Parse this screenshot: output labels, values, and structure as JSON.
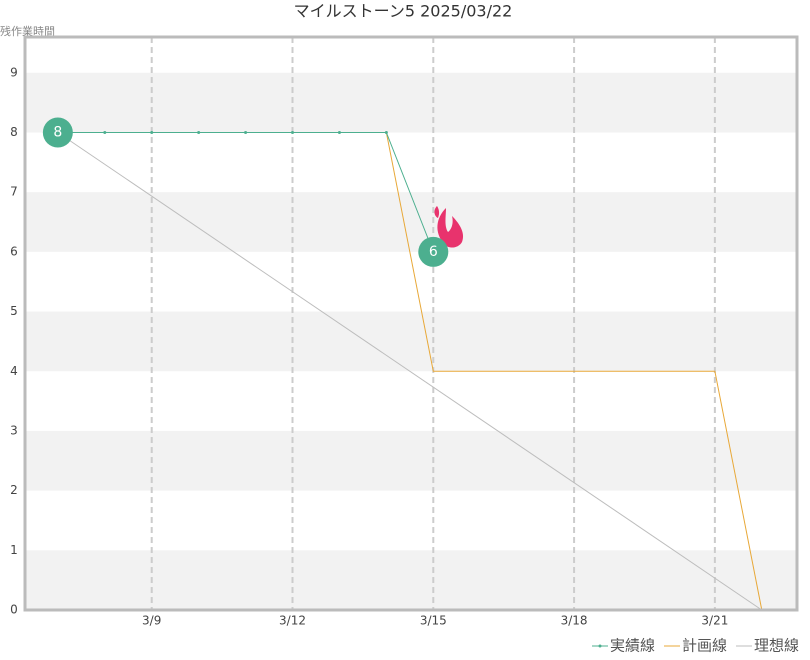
{
  "chart_data": {
    "type": "line",
    "title": "マイルストーン5 2025/03/22",
    "y_label": "残作業時間",
    "xlim": [
      6.3,
      22.75
    ],
    "xticks": [
      {
        "value": 9,
        "label": "3/9"
      },
      {
        "value": 12,
        "label": "3/12"
      },
      {
        "value": 15,
        "label": "3/15"
      },
      {
        "value": 18,
        "label": "3/18"
      },
      {
        "value": 21,
        "label": "3/21"
      }
    ],
    "ylim": [
      0,
      9.6
    ],
    "yticks": [
      0,
      1,
      2,
      3,
      4,
      5,
      6,
      7,
      8,
      9
    ],
    "grid": true,
    "legend": "lower right",
    "series": [
      {
        "name": "実績線",
        "color": "#4caf8f",
        "x": [
          7,
          8,
          9,
          10,
          11,
          12,
          13,
          14,
          15
        ],
        "values": [
          8,
          8,
          8,
          8,
          8,
          8,
          8,
          8,
          6
        ]
      },
      {
        "name": "計画線",
        "color": "#e8a838",
        "x": [
          7,
          14,
          15,
          21,
          22
        ],
        "values": [
          8,
          8,
          4,
          4,
          0
        ]
      },
      {
        "name": "理想線",
        "color": "#bdbdbd",
        "x": [
          7,
          22
        ],
        "values": [
          8,
          0
        ]
      }
    ]
  }
}
